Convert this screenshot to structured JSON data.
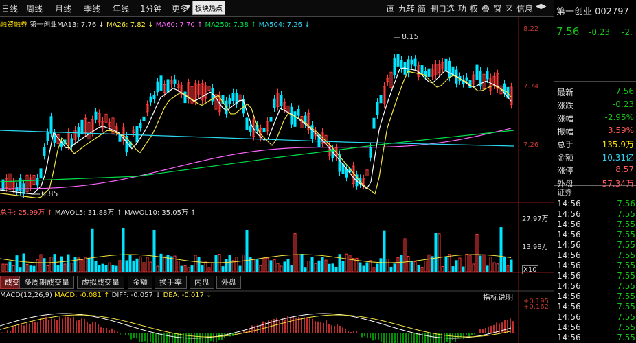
{
  "toolbar": {
    "tabs": [
      "日线",
      "周线",
      "月线",
      "季线",
      "年线",
      "1分钟",
      "更多"
    ],
    "tooltip": "板块热点",
    "tools": [
      "画",
      "九转",
      "简",
      "删自选",
      "功",
      "权",
      "叠",
      "窗",
      "区",
      "信息"
    ]
  },
  "legend": {
    "ma": {
      "tag": "融资融券",
      "title": "第一创业MA13: 7.76 ↓",
      "ma26": "MA26: 7.82 ↓",
      "ma60": "MA60: 7.70 ↑",
      "ma250": "MA250: 7.38 ↑",
      "ma504": "MA504: 7.26 ↓"
    },
    "vol": {
      "label": "总手: 25.99万 ↑",
      "mavol5": "MAVOL5: 31.88万 ↑",
      "mavol10": "MAVOL10: 35.05万 ↑"
    },
    "macd": {
      "label": "MACD(12,26,9)",
      "macd": "MACD: -0.081 ↑",
      "diff": "DIFF: -0.057 ↓",
      "dea": "DEA: -0.017 ↓",
      "help": "指标说明"
    }
  },
  "axis": {
    "price": [
      "8.22",
      "7.74",
      "7.26"
    ],
    "volume": [
      "27.97万",
      "13.98万"
    ],
    "vol_unit": "X10",
    "macd": [
      "+0.195",
      "+0.162"
    ]
  },
  "annotations": {
    "high": "8.15",
    "low": "6.85"
  },
  "tabs": [
    "成交量",
    "多周期成交量",
    "虚拟成交量",
    "金额",
    "换手率",
    "内盘",
    "外盘"
  ],
  "sidebar": {
    "title": "第一创业 002797",
    "price": "7.56",
    "change": "-0.23",
    "change_pct": "-2.",
    "stats": [
      {
        "k": "最新",
        "v": "7.56",
        "c": "#15c315"
      },
      {
        "k": "涨跌",
        "v": "-0.23",
        "c": "#15c315"
      },
      {
        "k": "涨幅",
        "v": "-2.95%",
        "c": "#15c315"
      },
      {
        "k": "振幅",
        "v": "3.59%",
        "c": "#ff5b5b"
      },
      {
        "k": "总手",
        "v": "135.9万",
        "c": "#ffde00"
      },
      {
        "k": "金额",
        "v": "10.31亿",
        "c": "#2bd9f5"
      },
      {
        "k": "涨停",
        "v": "8.57",
        "c": "#ff5b5b"
      },
      {
        "k": "外盘",
        "v": "57.34万",
        "c": "#ff5b5b"
      }
    ],
    "ticks_label": "证券",
    "ticks": [
      {
        "t": "14:56",
        "p": "7.56"
      },
      {
        "t": "14:56",
        "p": "7.55"
      },
      {
        "t": "14:56",
        "p": "7.55"
      },
      {
        "t": "14:56",
        "p": "7.55"
      },
      {
        "t": "14:56",
        "p": "7.55"
      },
      {
        "t": "14:56",
        "p": "7.55"
      },
      {
        "t": "14:56",
        "p": "7.55"
      },
      {
        "t": "14:56",
        "p": "7.55"
      },
      {
        "t": "14:56",
        "p": "7.55"
      },
      {
        "t": "14:56",
        "p": "7.55"
      },
      {
        "t": "14:56",
        "p": "7.55"
      },
      {
        "t": "14:56",
        "p": "7.55"
      },
      {
        "t": "14:56",
        "p": "7.55"
      },
      {
        "t": "14:56",
        "p": "7.55"
      }
    ]
  },
  "colors": {
    "up": "#ff3b3b",
    "down": "#00e5ff",
    "ma13": "#ffffff",
    "ma26": "#f5e642",
    "ma60": "#ff66ff",
    "ma250": "#00e04a",
    "ma504": "#2bd9f5"
  }
}
